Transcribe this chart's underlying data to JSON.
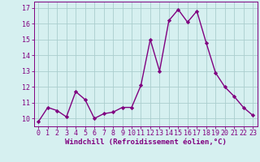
{
  "x": [
    0,
    1,
    2,
    3,
    4,
    5,
    6,
    7,
    8,
    9,
    10,
    11,
    12,
    13,
    14,
    15,
    16,
    17,
    18,
    19,
    20,
    21,
    22,
    23
  ],
  "y": [
    9.8,
    10.7,
    10.5,
    10.1,
    11.7,
    11.2,
    10.0,
    10.3,
    10.4,
    10.7,
    10.7,
    12.1,
    15.0,
    13.0,
    16.2,
    16.9,
    16.1,
    16.8,
    14.8,
    12.9,
    12.0,
    11.4,
    10.7,
    10.2
  ],
  "line_color": "#800080",
  "marker": "D",
  "marker_size": 2.2,
  "bg_color": "#d6f0f0",
  "grid_color": "#aacece",
  "ylabel_ticks": [
    10,
    11,
    12,
    13,
    14,
    15,
    16,
    17
  ],
  "ylim": [
    9.5,
    17.4
  ],
  "xlim": [
    -0.5,
    23.5
  ],
  "xlabel": "Windchill (Refroidissement éolien,°C)",
  "xlabel_fontsize": 6.5,
  "tick_fontsize": 6.0,
  "line_width": 1.0
}
